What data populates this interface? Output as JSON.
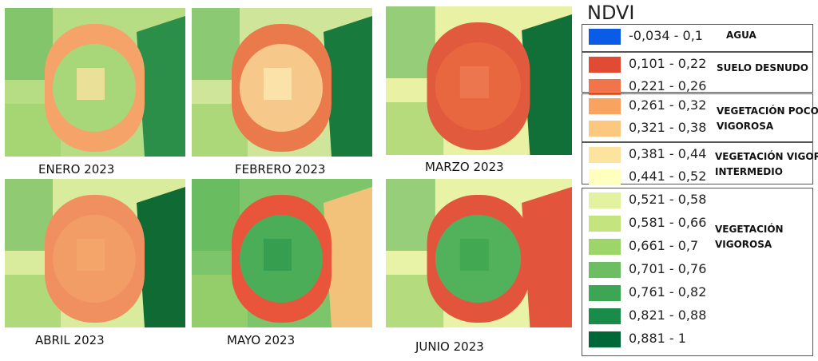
{
  "maps": [
    {
      "label": "ENERO 2023",
      "bg": "#b7dd84",
      "field": "#f5a368",
      "inner": "#fbe2a0",
      "right": "#2b8f4a",
      "pivot_inner": "#a8d77a"
    },
    {
      "label": "FEBRERO 2023",
      "bg": "#cfe69a",
      "field": "#ea7a4c",
      "inner": "#fbe9b0",
      "right": "#187a3c",
      "pivot_inner": "#f6c98a"
    },
    {
      "label": "MARZO 2023",
      "bg": "#e9f1a5",
      "field": "#e25a3d",
      "inner": "#ec7a52",
      "right": "#117038",
      "pivot_inner": "#e8673f"
    },
    {
      "label": "ABRIL 2023",
      "bg": "#d9eb9c",
      "field": "#f09060",
      "inner": "#f4a86c",
      "right": "#0f6a34",
      "pivot_inner": "#f29c66"
    },
    {
      "label": "MAYO 2023",
      "bg": "#7cc56a",
      "field": "#e8553a",
      "inner": "#2f9a4c",
      "right": "#f2c27a",
      "pivot_inner": "#4cad59"
    },
    {
      "label": "JUNIO 2023",
      "bg": "#e8f3a8",
      "field": "#e2543b",
      "inner": "#3fa550",
      "right": "#e2543b",
      "pivot_inner": "#52b25c"
    }
  ],
  "legend": {
    "title": "NDVI",
    "groups": [
      {
        "label": "AGUA",
        "items": [
          {
            "range": "-0,034 - 0,1",
            "color": "#0a5ce6"
          }
        ]
      },
      {
        "label": "SUELO DESNUDO",
        "items": [
          {
            "range": "0,101 - 0,22",
            "color": "#e24b33"
          },
          {
            "range": "0,221 - 0,26",
            "color": "#f2744a"
          }
        ]
      },
      {
        "label": "VEGETACIÓN POCO VIGOROSA",
        "items": [
          {
            "range": "0,261 - 0,32",
            "color": "#f8a35f"
          },
          {
            "range": "0,321 - 0,38",
            "color": "#fcc77e"
          }
        ]
      },
      {
        "label": "VEGETACIÓN VIGOR INTERMEDIO",
        "items": [
          {
            "range": "0,381 - 0,44",
            "color": "#fde49e"
          },
          {
            "range": "0,441 - 0,52",
            "color": "#ffffc0"
          }
        ]
      },
      {
        "label": "VEGETACIÓN VIGOROSA",
        "items": [
          {
            "range": "0,521 - 0,58",
            "color": "#e2f2a0"
          },
          {
            "range": "0,581 - 0,66",
            "color": "#c4e47f"
          },
          {
            "range": "0,661 - 0,7",
            "color": "#9dd56b"
          },
          {
            "range": "0,701 - 0,76",
            "color": "#6dbd62"
          },
          {
            "range": "0,761 - 0,82",
            "color": "#3da655"
          },
          {
            "range": "0,821 - 0,88",
            "color": "#188c48"
          },
          {
            "range": "0,881 - 1",
            "color": "#006837"
          }
        ]
      }
    ]
  }
}
